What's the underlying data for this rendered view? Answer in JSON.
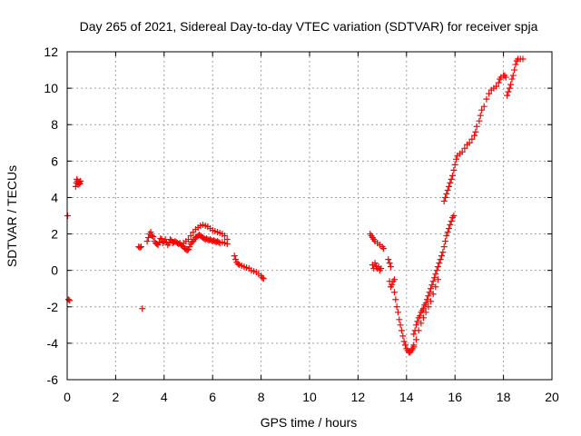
{
  "chart_data": {
    "type": "scatter",
    "title": "Day 265 of 2021, Sidereal Day-to-day VTEC variation (SDTVAR) for receiver spja",
    "xlabel": "GPS time / hours",
    "ylabel": "SDTVAR / TECUs",
    "xlim": [
      0,
      20
    ],
    "ylim": [
      -6,
      12
    ],
    "grid": true,
    "marker": "+",
    "marker_color": "#ff0000",
    "x_ticks": [
      0,
      2,
      4,
      6,
      8,
      10,
      12,
      14,
      16,
      18,
      20
    ],
    "x_tick_labels": [
      "0",
      "2",
      "4",
      "6",
      "8",
      "10",
      "12",
      "14",
      "16",
      "18",
      "20"
    ],
    "y_ticks": [
      -6,
      -4,
      -2,
      0,
      2,
      4,
      6,
      8,
      10,
      12
    ],
    "y_tick_labels": [
      "-6",
      "-4",
      "-2",
      "0",
      "2",
      "4",
      "6",
      "8",
      "10",
      "12"
    ],
    "series": [
      {
        "name": "SDTVAR",
        "points": [
          [
            0.02,
            3.0
          ],
          [
            0.05,
            -1.6
          ],
          [
            0.1,
            -1.65
          ],
          [
            0.35,
            4.6
          ],
          [
            0.38,
            4.8
          ],
          [
            0.4,
            5.0
          ],
          [
            0.42,
            4.9
          ],
          [
            0.45,
            4.7
          ],
          [
            0.48,
            4.85
          ],
          [
            0.5,
            4.8
          ],
          [
            0.52,
            4.75
          ],
          [
            0.55,
            4.9
          ],
          [
            2.95,
            1.3
          ],
          [
            3.0,
            1.25
          ],
          [
            3.05,
            1.3
          ],
          [
            3.1,
            -2.1
          ],
          [
            3.3,
            1.6
          ],
          [
            3.35,
            1.8
          ],
          [
            3.4,
            2.0
          ],
          [
            3.45,
            2.1
          ],
          [
            3.5,
            1.9
          ],
          [
            3.55,
            1.85
          ],
          [
            3.6,
            1.6
          ],
          [
            3.65,
            1.5
          ],
          [
            3.7,
            1.45
          ],
          [
            3.75,
            1.4
          ],
          [
            3.8,
            1.55
          ],
          [
            3.85,
            1.75
          ],
          [
            3.9,
            1.7
          ],
          [
            3.95,
            1.5
          ],
          [
            4.0,
            1.6
          ],
          [
            4.05,
            1.7
          ],
          [
            4.1,
            1.55
          ],
          [
            4.15,
            1.4
          ],
          [
            4.2,
            1.5
          ],
          [
            4.25,
            1.7
          ],
          [
            4.3,
            1.65
          ],
          [
            4.35,
            1.5
          ],
          [
            4.4,
            1.55
          ],
          [
            4.45,
            1.6
          ],
          [
            4.5,
            1.55
          ],
          [
            4.55,
            1.5
          ],
          [
            4.6,
            1.45
          ],
          [
            4.65,
            1.5
          ],
          [
            4.7,
            1.4
          ],
          [
            4.75,
            1.35
          ],
          [
            4.8,
            1.3
          ],
          [
            4.85,
            1.2
          ],
          [
            4.9,
            1.15
          ],
          [
            4.95,
            1.1
          ],
          [
            5.0,
            1.15
          ],
          [
            5.05,
            1.3
          ],
          [
            5.1,
            1.45
          ],
          [
            5.15,
            1.55
          ],
          [
            5.2,
            1.6
          ],
          [
            5.25,
            1.7
          ],
          [
            5.3,
            1.8
          ],
          [
            5.35,
            1.85
          ],
          [
            5.4,
            1.9
          ],
          [
            5.45,
            1.95
          ],
          [
            5.5,
            1.9
          ],
          [
            5.55,
            1.85
          ],
          [
            5.6,
            1.8
          ],
          [
            5.65,
            1.75
          ],
          [
            5.7,
            1.7
          ],
          [
            5.75,
            1.75
          ],
          [
            5.8,
            1.7
          ],
          [
            5.85,
            1.65
          ],
          [
            5.9,
            1.7
          ],
          [
            5.95,
            1.65
          ],
          [
            6.0,
            1.6
          ],
          [
            6.05,
            1.65
          ],
          [
            6.1,
            1.6
          ],
          [
            6.15,
            1.55
          ],
          [
            6.2,
            1.6
          ],
          [
            6.25,
            1.55
          ],
          [
            6.3,
            1.5
          ],
          [
            6.4,
            1.55
          ],
          [
            6.5,
            1.5
          ],
          [
            6.6,
            1.45
          ],
          [
            4.8,
            1.5
          ],
          [
            4.9,
            1.6
          ],
          [
            5.0,
            1.7
          ],
          [
            5.1,
            1.9
          ],
          [
            5.2,
            2.1
          ],
          [
            5.3,
            2.25
          ],
          [
            5.4,
            2.35
          ],
          [
            5.5,
            2.45
          ],
          [
            5.6,
            2.5
          ],
          [
            5.7,
            2.45
          ],
          [
            5.8,
            2.4
          ],
          [
            5.9,
            2.3
          ],
          [
            6.0,
            2.2
          ],
          [
            6.1,
            2.15
          ],
          [
            6.2,
            2.1
          ],
          [
            6.3,
            2.05
          ],
          [
            6.4,
            2.0
          ],
          [
            6.5,
            1.9
          ],
          [
            6.6,
            1.7
          ],
          [
            6.9,
            0.8
          ],
          [
            6.95,
            0.6
          ],
          [
            7.0,
            0.45
          ],
          [
            7.05,
            0.35
          ],
          [
            7.1,
            0.3
          ],
          [
            7.2,
            0.25
          ],
          [
            7.3,
            0.2
          ],
          [
            7.4,
            0.15
          ],
          [
            7.5,
            0.1
          ],
          [
            7.6,
            0.0
          ],
          [
            7.7,
            -0.05
          ],
          [
            7.8,
            -0.1
          ],
          [
            7.9,
            -0.2
          ],
          [
            8.0,
            -0.3
          ],
          [
            8.05,
            -0.4
          ],
          [
            8.1,
            -0.45
          ],
          [
            12.5,
            2.0
          ],
          [
            12.55,
            1.9
          ],
          [
            12.6,
            1.8
          ],
          [
            12.65,
            1.7
          ],
          [
            12.7,
            1.6
          ],
          [
            12.8,
            1.5
          ],
          [
            12.9,
            1.4
          ],
          [
            13.0,
            1.3
          ],
          [
            13.05,
            1.2
          ],
          [
            12.6,
            0.3
          ],
          [
            12.65,
            0.1
          ],
          [
            12.7,
            0.4
          ],
          [
            12.75,
            0.2
          ],
          [
            12.8,
            0.1
          ],
          [
            12.85,
            0.2
          ],
          [
            12.9,
            0.0
          ],
          [
            12.95,
            0.1
          ],
          [
            13.25,
            0.6
          ],
          [
            13.3,
            0.4
          ],
          [
            13.35,
            0.2
          ],
          [
            13.3,
            -0.6
          ],
          [
            13.35,
            -0.9
          ],
          [
            13.4,
            -0.8
          ],
          [
            13.45,
            -0.6
          ],
          [
            13.5,
            -0.5
          ],
          [
            13.5,
            -1.2
          ],
          [
            13.55,
            -1.6
          ],
          [
            13.6,
            -2.0
          ],
          [
            13.65,
            -2.3
          ],
          [
            13.7,
            -2.7
          ],
          [
            13.75,
            -3.0
          ],
          [
            13.8,
            -3.3
          ],
          [
            13.85,
            -3.6
          ],
          [
            13.9,
            -3.9
          ],
          [
            13.95,
            -4.1
          ],
          [
            14.0,
            -4.3
          ],
          [
            14.05,
            -4.4
          ],
          [
            14.1,
            -4.5
          ],
          [
            14.15,
            -4.5
          ],
          [
            14.2,
            -4.4
          ],
          [
            14.25,
            -4.3
          ],
          [
            14.3,
            -4.1
          ],
          [
            14.3,
            -3.5
          ],
          [
            14.35,
            -3.3
          ],
          [
            14.4,
            -3.0
          ],
          [
            14.45,
            -2.8
          ],
          [
            14.5,
            -2.6
          ],
          [
            14.55,
            -2.5
          ],
          [
            14.6,
            -2.3
          ],
          [
            14.65,
            -2.2
          ],
          [
            14.7,
            -2.1
          ],
          [
            14.75,
            -1.9
          ],
          [
            14.8,
            -1.8
          ],
          [
            14.85,
            -1.6
          ],
          [
            14.9,
            -1.4
          ],
          [
            14.95,
            -1.2
          ],
          [
            15.0,
            -1.0
          ],
          [
            15.05,
            -0.8
          ],
          [
            15.1,
            -0.6
          ],
          [
            15.15,
            -0.4
          ],
          [
            15.2,
            -0.2
          ],
          [
            15.25,
            0.0
          ],
          [
            15.3,
            0.2
          ],
          [
            15.35,
            0.4
          ],
          [
            15.4,
            0.6
          ],
          [
            15.45,
            0.8
          ],
          [
            15.5,
            1.0
          ],
          [
            15.55,
            1.3
          ],
          [
            15.6,
            1.6
          ],
          [
            15.65,
            1.9
          ],
          [
            15.7,
            2.1
          ],
          [
            15.75,
            2.3
          ],
          [
            15.8,
            2.5
          ],
          [
            15.85,
            2.7
          ],
          [
            15.9,
            2.9
          ],
          [
            15.95,
            3.0
          ],
          [
            14.3,
            -4.2
          ],
          [
            14.4,
            -3.8
          ],
          [
            14.5,
            -3.3
          ],
          [
            14.6,
            -2.9
          ],
          [
            14.7,
            -2.6
          ],
          [
            14.8,
            -2.3
          ],
          [
            14.9,
            -2.0
          ],
          [
            15.0,
            -1.7
          ],
          [
            15.1,
            -1.3
          ],
          [
            15.2,
            -0.9
          ],
          [
            15.3,
            -0.5
          ],
          [
            15.55,
            3.8
          ],
          [
            15.6,
            4.0
          ],
          [
            15.65,
            4.2
          ],
          [
            15.7,
            4.4
          ],
          [
            15.75,
            4.6
          ],
          [
            15.8,
            4.8
          ],
          [
            15.85,
            5.0
          ],
          [
            15.9,
            5.2
          ],
          [
            15.95,
            5.5
          ],
          [
            16.0,
            5.8
          ],
          [
            16.05,
            6.1
          ],
          [
            16.1,
            6.3
          ],
          [
            16.2,
            6.4
          ],
          [
            16.3,
            6.5
          ],
          [
            16.4,
            6.7
          ],
          [
            16.5,
            6.9
          ],
          [
            16.6,
            7.0
          ],
          [
            16.7,
            7.2
          ],
          [
            16.8,
            7.4
          ],
          [
            16.85,
            7.6
          ],
          [
            16.9,
            7.9
          ],
          [
            17.0,
            8.2
          ],
          [
            17.05,
            8.5
          ],
          [
            17.1,
            8.8
          ],
          [
            17.2,
            9.0
          ],
          [
            17.3,
            9.4
          ],
          [
            17.4,
            9.7
          ],
          [
            17.5,
            9.9
          ],
          [
            17.6,
            10.0
          ],
          [
            17.7,
            10.1
          ],
          [
            17.8,
            10.3
          ],
          [
            17.85,
            10.5
          ],
          [
            17.9,
            10.6
          ],
          [
            18.0,
            10.7
          ],
          [
            18.05,
            10.7
          ],
          [
            18.1,
            10.6
          ],
          [
            18.15,
            9.6
          ],
          [
            18.2,
            9.8
          ],
          [
            18.25,
            10.0
          ],
          [
            18.3,
            10.2
          ],
          [
            18.35,
            10.5
          ],
          [
            18.4,
            10.7
          ],
          [
            18.45,
            11.0
          ],
          [
            18.5,
            11.3
          ],
          [
            18.55,
            11.5
          ],
          [
            18.6,
            11.6
          ],
          [
            18.7,
            11.6
          ],
          [
            18.8,
            11.6
          ]
        ]
      }
    ]
  }
}
